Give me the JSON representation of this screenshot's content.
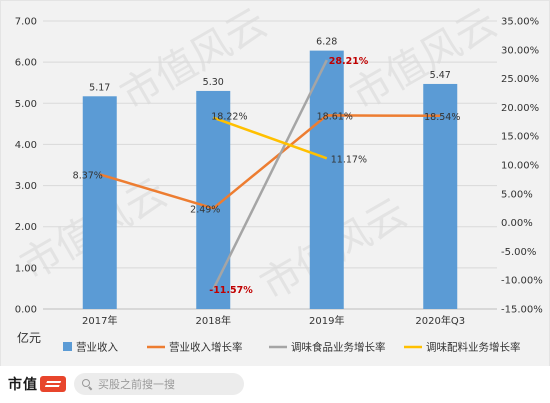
{
  "chart_data": {
    "type": "bar",
    "categories": [
      "2017年",
      "2018年",
      "2019年",
      "2020年Q3"
    ],
    "unit_label": "亿元",
    "y_left": {
      "min": 0,
      "max": 7,
      "step": 1,
      "ticks": [
        "0.00",
        "1.00",
        "2.00",
        "3.00",
        "4.00",
        "5.00",
        "6.00",
        "7.00"
      ]
    },
    "y_right": {
      "min": -15,
      "max": 35,
      "step": 5,
      "ticks": [
        "-15.00%",
        "-10.00%",
        "-5.00%",
        "0.00%",
        "5.00%",
        "10.00%",
        "15.00%",
        "20.00%",
        "25.00%",
        "30.00%",
        "35.00%"
      ]
    },
    "grid": true,
    "legend_position": "bottom",
    "bars": {
      "name": "营业收入",
      "color": "#5b9bd5",
      "axis": "left",
      "values": [
        5.17,
        5.3,
        6.28,
        5.47
      ],
      "labels": [
        "5.17",
        "5.30",
        "6.28",
        "5.47"
      ]
    },
    "lines": [
      {
        "name": "营业收入增长率",
        "color": "#ed7d31",
        "axis": "right",
        "values": [
          8.37,
          2.49,
          18.61,
          18.54
        ],
        "labels": [
          "8.37%",
          "2.49%",
          "18.61%",
          "18.54%"
        ]
      },
      {
        "name": "调味食品业务增长率",
        "color": "#a5a5a5",
        "axis": "right",
        "values": [
          null,
          -11.57,
          28.21,
          null
        ],
        "labels": [
          null,
          "-11.57%",
          "28.21%",
          null
        ],
        "label_color": "#c00000"
      },
      {
        "name": "调味配料业务增长率",
        "color": "#ffc000",
        "axis": "right",
        "values": [
          null,
          18.22,
          11.17,
          null
        ],
        "labels": [
          null,
          "18.22%",
          "11.17%",
          null
        ]
      }
    ]
  },
  "watermark": "市值风云",
  "footer": {
    "brand_text": "市值",
    "search_placeholder": "买股之前搜一搜"
  }
}
